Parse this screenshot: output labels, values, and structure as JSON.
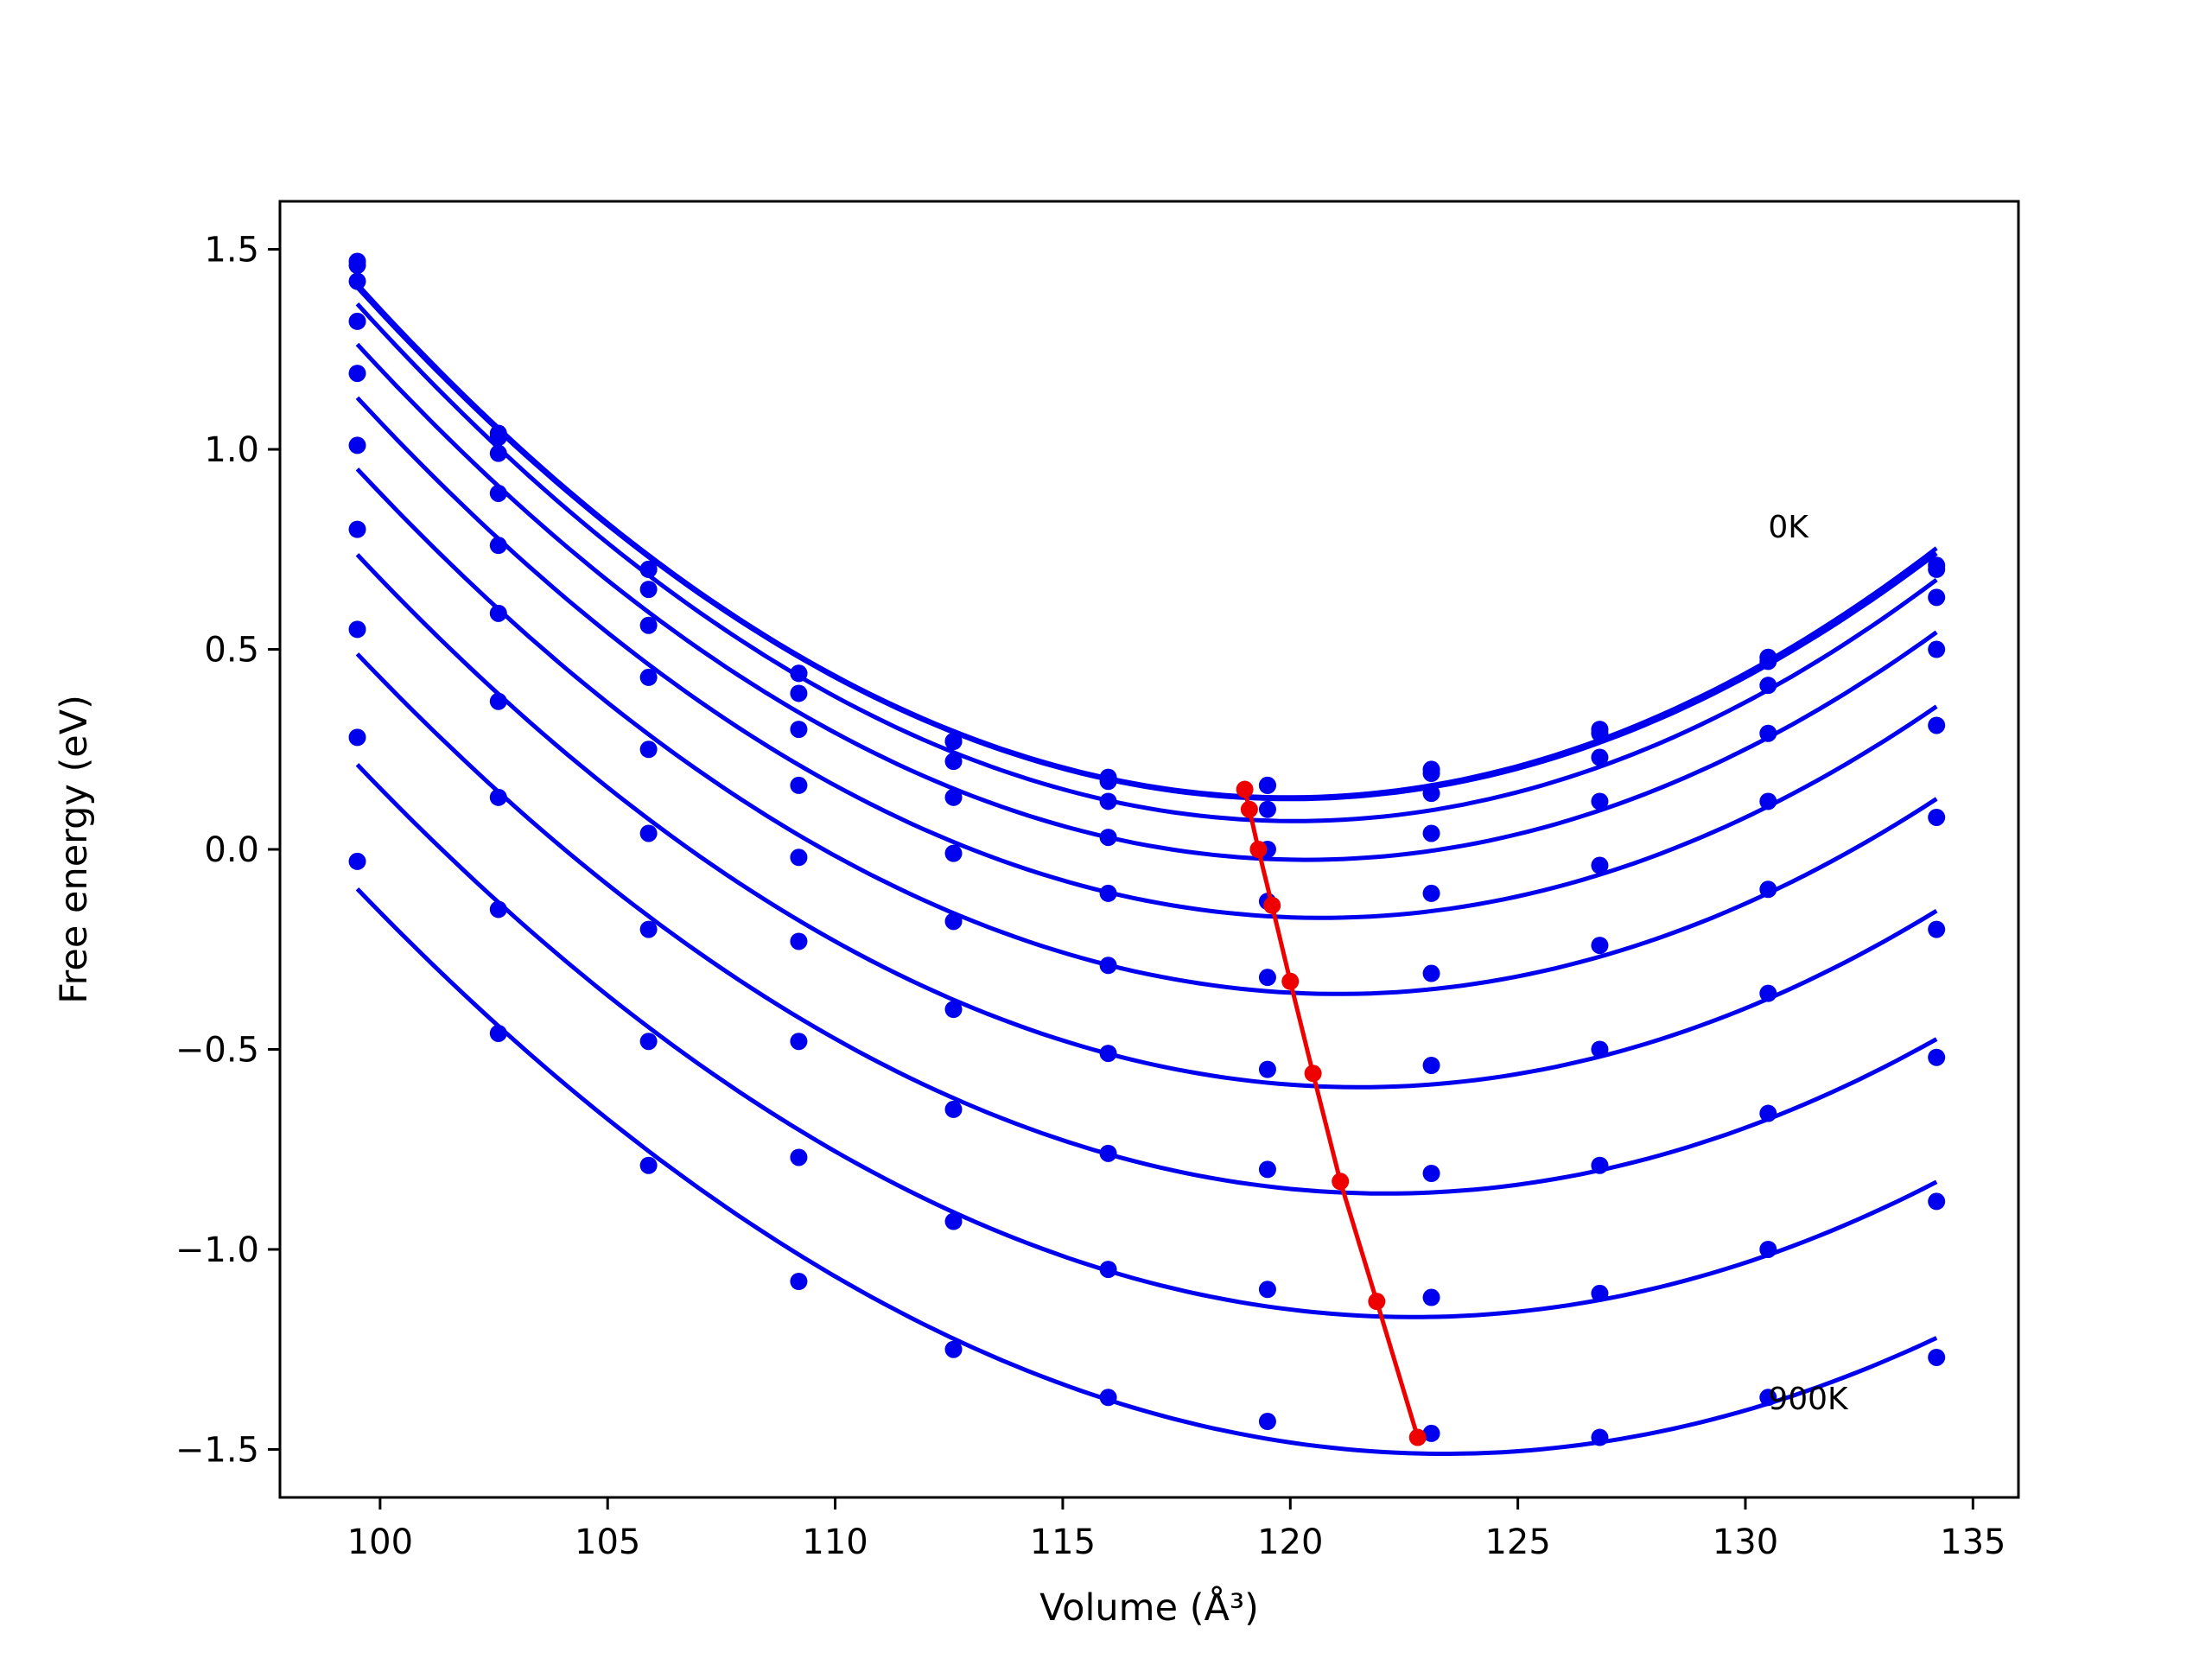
{
  "chart_data": {
    "type": "line",
    "xlabel": "Volume (Å³)",
    "ylabel": "Free energy (eV)",
    "xlim": [
      97.8,
      136.0
    ],
    "ylim": [
      -1.62,
      1.62
    ],
    "x_ticks": [
      100,
      105,
      110,
      115,
      120,
      125,
      130,
      135
    ],
    "y_ticks": [
      1.5,
      1.0,
      0.5,
      0.0,
      -0.5,
      -1.0,
      -1.5
    ],
    "x_tick_labels": [
      "100",
      "105",
      "110",
      "115",
      "120",
      "125",
      "130",
      "135"
    ],
    "y_tick_labels": [
      "1.5",
      "1.0",
      "0.5",
      "0.0",
      "−0.5",
      "−1.0",
      "−1.5"
    ],
    "grid": false,
    "annotations": [
      {
        "text": "0K",
        "x": 130.5,
        "y": 0.78
      },
      {
        "text": "900K",
        "x": 130.5,
        "y": -1.4
      }
    ],
    "x": [
      99.5,
      102.6,
      105.9,
      109.2,
      112.6,
      116.0,
      119.5,
      123.1,
      126.8,
      130.5,
      134.2
    ],
    "series": [
      {
        "values": [
          1.47,
          1.04,
          0.7,
          0.44,
          0.27,
          0.18,
          0.16,
          0.2,
          0.3,
          0.48,
          0.71
        ]
      },
      {
        "values": [
          1.46,
          1.03,
          0.7,
          0.44,
          0.27,
          0.17,
          0.16,
          0.19,
          0.29,
          0.47,
          0.7
        ]
      },
      {
        "values": [
          1.42,
          0.99,
          0.65,
          0.39,
          0.22,
          0.12,
          0.1,
          0.14,
          0.23,
          0.41,
          0.63
        ]
      },
      {
        "values": [
          1.32,
          0.89,
          0.56,
          0.3,
          0.13,
          0.03,
          0.0,
          0.04,
          0.12,
          0.29,
          0.5
        ]
      },
      {
        "values": [
          1.19,
          0.76,
          0.43,
          0.16,
          -0.01,
          -0.11,
          -0.13,
          -0.11,
          -0.04,
          0.12,
          0.31
        ]
      },
      {
        "values": [
          1.01,
          0.59,
          0.25,
          -0.02,
          -0.18,
          -0.29,
          -0.32,
          -0.31,
          -0.24,
          -0.1,
          0.08
        ]
      },
      {
        "values": [
          0.8,
          0.37,
          0.04,
          -0.23,
          -0.4,
          -0.51,
          -0.55,
          -0.54,
          -0.5,
          -0.36,
          -0.2
        ]
      },
      {
        "values": [
          0.55,
          0.13,
          -0.2,
          -0.48,
          -0.65,
          -0.76,
          -0.8,
          -0.81,
          -0.79,
          -0.66,
          -0.52
        ]
      },
      {
        "values": [
          0.28,
          -0.15,
          -0.48,
          -0.77,
          -0.93,
          -1.05,
          -1.1,
          -1.12,
          -1.11,
          -1.0,
          -0.88
        ]
      },
      {
        "values": [
          -0.03,
          -0.46,
          -0.79,
          -1.08,
          -1.25,
          -1.37,
          -1.43,
          -1.46,
          -1.47,
          -1.37,
          -1.27
        ]
      }
    ],
    "minima": {
      "x": [
        119.0,
        119.1,
        119.3,
        119.6,
        120.0,
        120.5,
        121.1,
        121.9,
        122.8
      ],
      "y": [
        0.15,
        0.1,
        0.0,
        -0.14,
        -0.33,
        -0.56,
        -0.83,
        -1.13,
        -1.47
      ]
    },
    "colors": {
      "series": "#0000ee",
      "minima": "#ee0000",
      "axis": "#000000"
    }
  }
}
